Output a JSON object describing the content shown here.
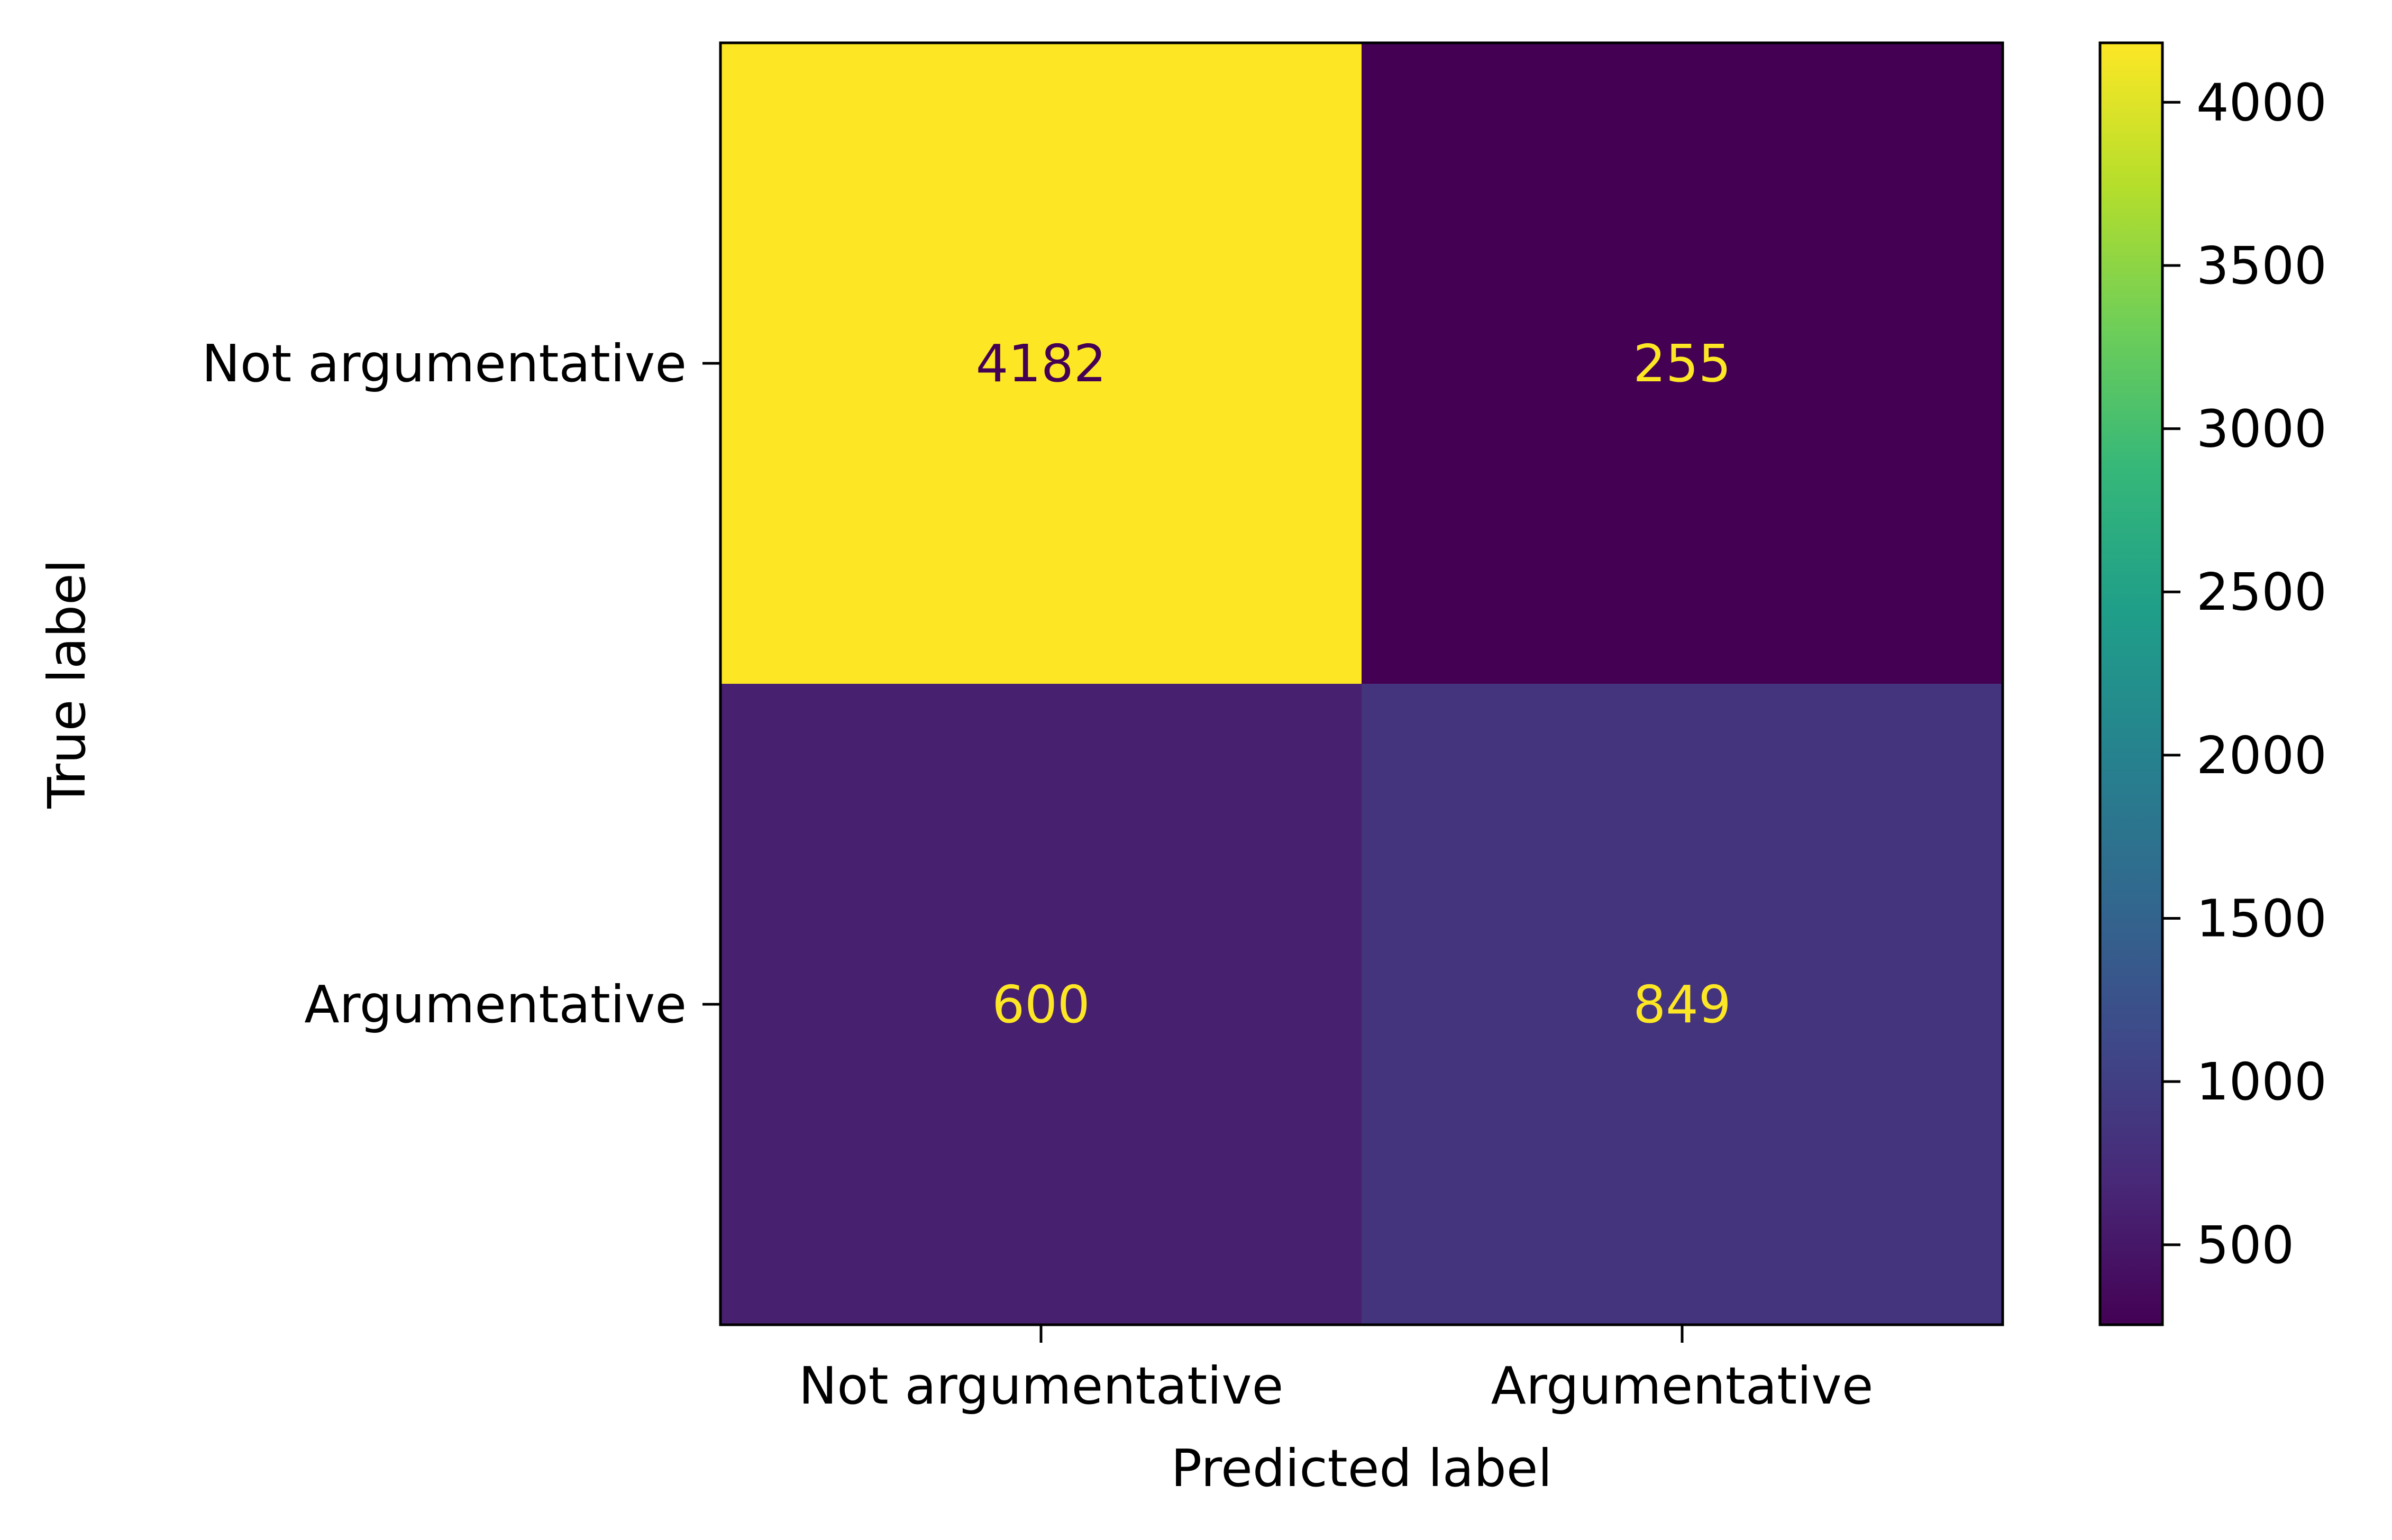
{
  "chart_data": {
    "type": "heatmap",
    "title": "",
    "xlabel": "Predicted label",
    "ylabel": "True label",
    "x_categories": [
      "Not argumentative",
      "Argumentative"
    ],
    "y_categories": [
      "Not argumentative",
      "Argumentative"
    ],
    "matrix": [
      [
        4182,
        255
      ],
      [
        600,
        849
      ]
    ],
    "colormap": "viridis",
    "colorbar": {
      "range": [
        255,
        4182
      ],
      "ticks": [
        500,
        1000,
        1500,
        2000,
        2500,
        3000,
        3500,
        4000
      ],
      "tick_labels": [
        "500",
        "1000",
        "1500",
        "2000",
        "2500",
        "3000",
        "3500",
        "4000"
      ]
    },
    "grid": false,
    "cell_text_colors": {
      "on_dark": "#fde725",
      "on_light": "#440154"
    }
  }
}
